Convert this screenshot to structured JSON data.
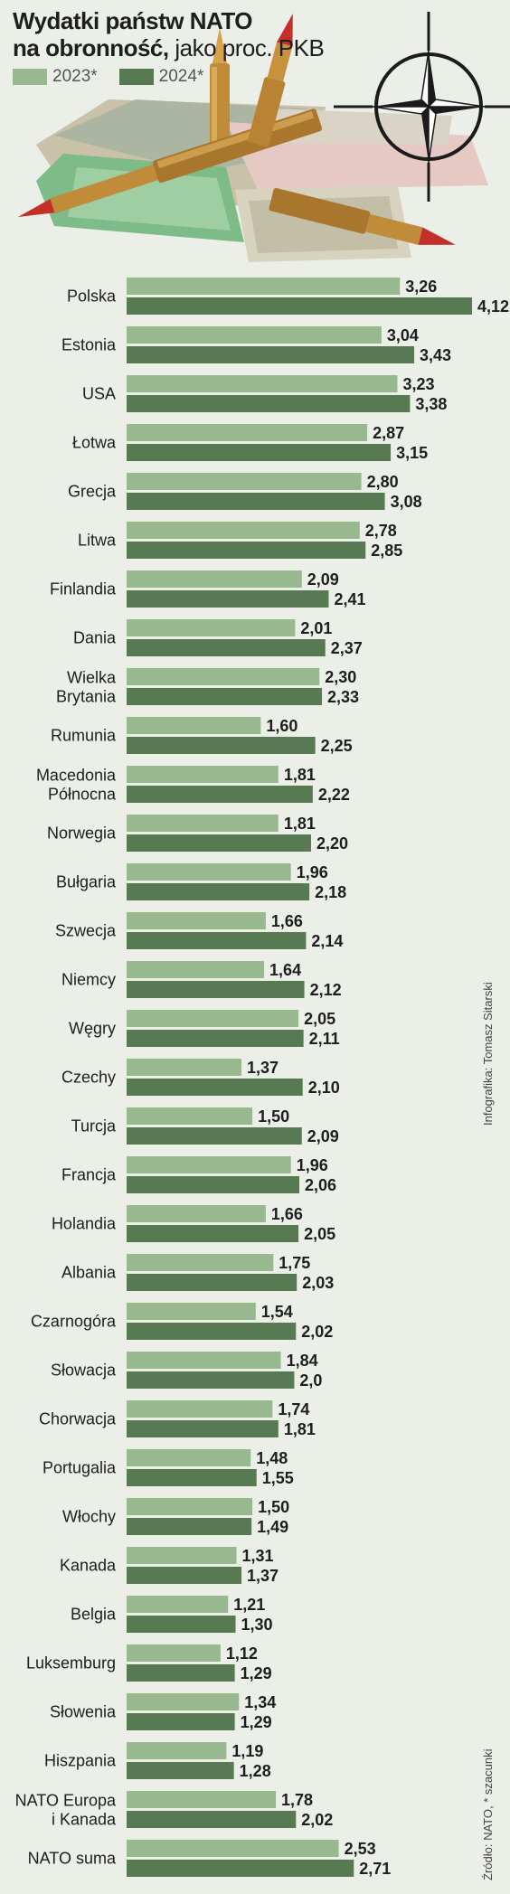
{
  "header": {
    "title_line1": "Wydatki państw NATO",
    "title_line2_bold": "na obronność,",
    "title_line2_light": " jako proc. PKB"
  },
  "legend": {
    "s2023": "2023*",
    "s2024": "2024*"
  },
  "colors": {
    "s2023": "#98b890",
    "s2024": "#577a52",
    "background": "#eceee8"
  },
  "icons": [
    "compass-star-icon",
    "cartridges-illustration",
    "banknotes-illustration"
  ],
  "credit": "Infografika: Tomasz Sitarski",
  "source": "Źródło: NATO, * szacunki",
  "chart_data": {
    "type": "bar",
    "orientation": "horizontal",
    "title": "Wydatki państw NATO na obronność, jako proc. PKB",
    "categories": [
      [
        "Polska"
      ],
      [
        "Estonia"
      ],
      [
        "USA"
      ],
      [
        "Łotwa"
      ],
      [
        "Grecja"
      ],
      [
        "Litwa"
      ],
      [
        "Finlandia"
      ],
      [
        "Dania"
      ],
      [
        "Wielka",
        "Brytania"
      ],
      [
        "Rumunia"
      ],
      [
        "Macedonia",
        "Północna"
      ],
      [
        "Norwegia"
      ],
      [
        "Bułgaria"
      ],
      [
        "Szwecja"
      ],
      [
        "Niemcy"
      ],
      [
        "Węgry"
      ],
      [
        "Czechy"
      ],
      [
        "Turcja"
      ],
      [
        "Francja"
      ],
      [
        "Holandia"
      ],
      [
        "Albania"
      ],
      [
        "Czarnogóra"
      ],
      [
        "Słowacja"
      ],
      [
        "Chorwacja"
      ],
      [
        "Portugalia"
      ],
      [
        "Włochy"
      ],
      [
        "Kanada"
      ],
      [
        "Belgia"
      ],
      [
        "Luksemburg"
      ],
      [
        "Słowenia"
      ],
      [
        "Hiszpania"
      ],
      [
        "NATO Europa",
        "i Kanada"
      ],
      [
        "NATO suma"
      ]
    ],
    "series": [
      {
        "name": "2023*",
        "values": [
          3.26,
          3.04,
          3.23,
          2.87,
          2.8,
          2.78,
          2.09,
          2.01,
          2.3,
          1.6,
          1.81,
          1.81,
          1.96,
          1.66,
          1.64,
          2.05,
          1.37,
          1.5,
          1.96,
          1.66,
          1.75,
          1.54,
          1.84,
          1.74,
          1.48,
          1.5,
          1.31,
          1.21,
          1.12,
          1.34,
          1.19,
          1.78,
          2.53
        ],
        "labels": [
          "3,26",
          "3,04",
          "3,23",
          "2,87",
          "2,80",
          "2,78",
          "2,09",
          "2,01",
          "2,30",
          "1,60",
          "1,81",
          "1,81",
          "1,96",
          "1,66",
          "1,64",
          "2,05",
          "1,37",
          "1,50",
          "1,96",
          "1,66",
          "1,75",
          "1,54",
          "1,84",
          "1,74",
          "1,48",
          "1,50",
          "1,31",
          "1,21",
          "1,12",
          "1,34",
          "1,19",
          "1,78",
          "2,53"
        ]
      },
      {
        "name": "2024*",
        "values": [
          4.12,
          3.43,
          3.38,
          3.15,
          3.08,
          2.85,
          2.41,
          2.37,
          2.33,
          2.25,
          2.22,
          2.2,
          2.18,
          2.14,
          2.12,
          2.11,
          2.1,
          2.09,
          2.06,
          2.05,
          2.03,
          2.02,
          2.0,
          1.81,
          1.55,
          1.49,
          1.37,
          1.3,
          1.29,
          1.29,
          1.28,
          2.02,
          2.71
        ],
        "labels": [
          "4,12",
          "3,43",
          "3,38",
          "3,15",
          "3,08",
          "2,85",
          "2,41",
          "2,37",
          "2,33",
          "2,25",
          "2,22",
          "2,20",
          "2,18",
          "2,14",
          "2,12",
          "2,11",
          "2,10",
          "2,09",
          "2,06",
          "2,05",
          "2,03",
          "2,02",
          "2,0",
          "1,81",
          "1,55",
          "1,49",
          "1,37",
          "1,30",
          "1,29",
          "1,29",
          "1,28",
          "2,02",
          "2,71"
        ]
      }
    ],
    "xlim": [
      0,
      4.12
    ],
    "grid": false,
    "legend_position": "top-left"
  }
}
